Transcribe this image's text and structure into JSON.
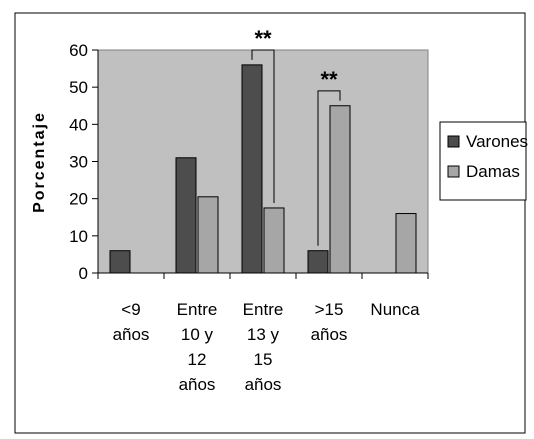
{
  "chart_data": {
    "type": "bar",
    "title": "",
    "xlabel": "",
    "ylabel": "Porcentaje",
    "ylim": [
      0,
      60
    ],
    "yticks": [
      0,
      10,
      20,
      30,
      40,
      50,
      60
    ],
    "grid": false,
    "legend_position": "right",
    "categories": [
      [
        "<9",
        "años"
      ],
      [
        "Entre",
        "10 y",
        "12",
        "años"
      ],
      [
        "Entre",
        "13 y",
        "15",
        "años"
      ],
      [
        ">15",
        "años"
      ],
      [
        "Nunca"
      ]
    ],
    "series": [
      {
        "name": "Varones",
        "values": [
          6,
          31,
          56,
          6,
          0
        ],
        "color": "#4d4d4d"
      },
      {
        "name": "Damas",
        "values": [
          0,
          20.5,
          17.5,
          45,
          16
        ],
        "color": "#a6a6a6"
      }
    ],
    "annotations": [
      {
        "text": "**",
        "between_categories": [
          2,
          2
        ],
        "bracket": true
      },
      {
        "text": "**",
        "between_categories": [
          3,
          3
        ],
        "bracket": true
      }
    ],
    "plot_background": "#c0c0c0"
  }
}
